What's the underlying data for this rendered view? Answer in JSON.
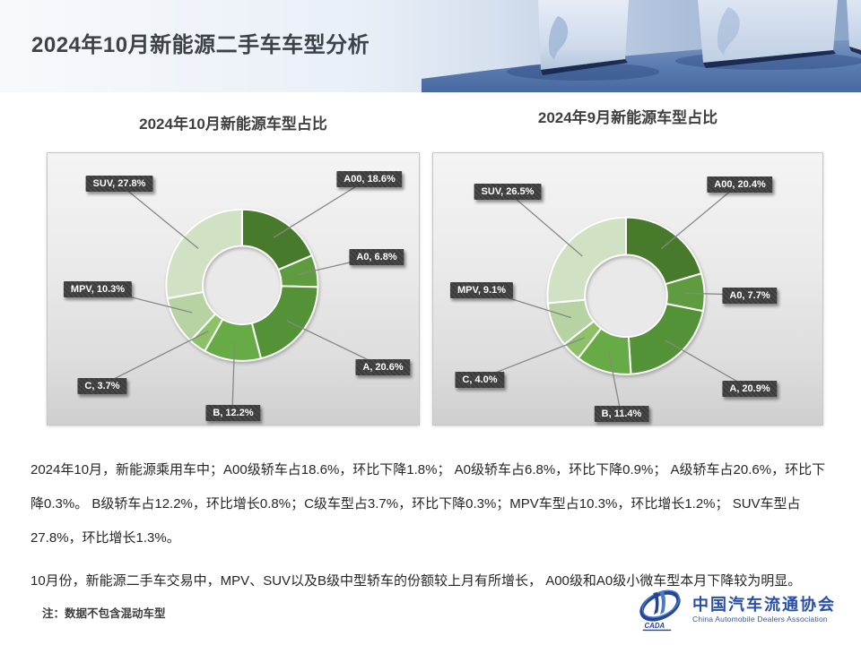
{
  "slide": {
    "title": "2024年10月新能源二手车车型分析",
    "note": "注：数据不包含混动车型",
    "paragraph1": "2024年10月，新能源乘用车中；A00级轿车占18.6%，环比下降1.8%；  A0级轿车占6.8%，环比下降0.9%；  A级轿车占20.6%，环比下降0.3%。  B级轿车占12.2%，环比增长0.8%；C级车型占3.7%，环比下降0.3%；MPV车型占10.3%，环比增长1.2%；  SUV车型占27.8%，环比增长1.3%。",
    "paragraph2": "10月份，新能源二手车交易中，MPV、SUV以及B级中型轿车的份额较上月有所增长，  A00级和A0级小微车型本月下降较为明显。"
  },
  "logo": {
    "cn": "中国汽车流通协会",
    "en": "China Automobile Dealers Association",
    "mark": "CADA",
    "color": "#2a4fa2"
  },
  "chart_data": [
    {
      "type": "pie",
      "subtype": "donut",
      "title": "2024年10月新能源车型占比",
      "categories": [
        "A00",
        "A0",
        "A",
        "B",
        "C",
        "MPV",
        "SUV"
      ],
      "values": [
        18.6,
        6.8,
        20.6,
        12.2,
        3.7,
        10.3,
        27.8
      ],
      "unit": "%",
      "labels": [
        "A00, 18.6%",
        "A0, 6.8%",
        "A, 20.6%",
        "B, 12.2%",
        "C, 3.7%",
        "MPV, 10.3%",
        "SUV, 27.8%"
      ],
      "colors": [
        "#487a2b",
        "#5f9c40",
        "#549238",
        "#67ab46",
        "#8cc168",
        "#b7d3a4",
        "#d0e2c3"
      ],
      "legend": "none",
      "label_style": "dark-callout-boxes"
    },
    {
      "type": "pie",
      "subtype": "donut",
      "title": "2024年9月新能源车型占比",
      "categories": [
        "A00",
        "A0",
        "A",
        "B",
        "C",
        "MPV",
        "SUV"
      ],
      "values": [
        20.4,
        7.7,
        20.9,
        11.4,
        4.0,
        9.1,
        26.5
      ],
      "unit": "%",
      "labels": [
        "A00, 20.4%",
        "A0, 7.7%",
        "A, 20.9%",
        "B, 11.4%",
        "C, 4.0%",
        "MPV, 9.1%",
        "SUV, 26.5%"
      ],
      "colors": [
        "#487a2b",
        "#5f9c40",
        "#549238",
        "#67ab46",
        "#8cc168",
        "#b7d3a4",
        "#d0e2c3"
      ],
      "legend": "none",
      "label_style": "dark-callout-boxes"
    }
  ]
}
